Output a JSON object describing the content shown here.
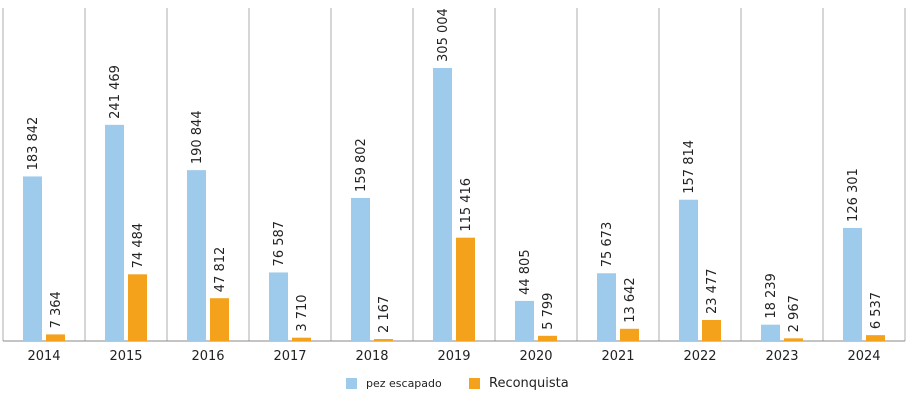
{
  "chart_data": {
    "type": "bar",
    "categories": [
      "2014",
      "2015",
      "2016",
      "2017",
      "2018",
      "2019",
      "2020",
      "2021",
      "2022",
      "2023",
      "2024"
    ],
    "series": [
      {
        "name": "pez escapado",
        "color": "#9ecaeb",
        "values": [
          183842,
          241469,
          190844,
          76587,
          159802,
          305004,
          44805,
          75673,
          157814,
          18239,
          126301
        ],
        "value_labels": [
          "183 842",
          "241 469",
          "190 844",
          "76 587",
          "159 802",
          "305 004",
          "44 805",
          "75 673",
          "157 814",
          "18 239",
          "126 301"
        ]
      },
      {
        "name": "Reconquista",
        "color": "#f4a11c",
        "values": [
          7364,
          74484,
          47812,
          3710,
          2167,
          115416,
          5799,
          13642,
          23477,
          2967,
          6537
        ],
        "value_labels": [
          "7 364",
          "74 484",
          "47 812",
          "3 710",
          "2 167",
          "115 416",
          "5 799",
          "13 642",
          "23 477",
          "2 967",
          "6 537"
        ]
      }
    ],
    "ylim": [
      0,
      372000
    ]
  }
}
